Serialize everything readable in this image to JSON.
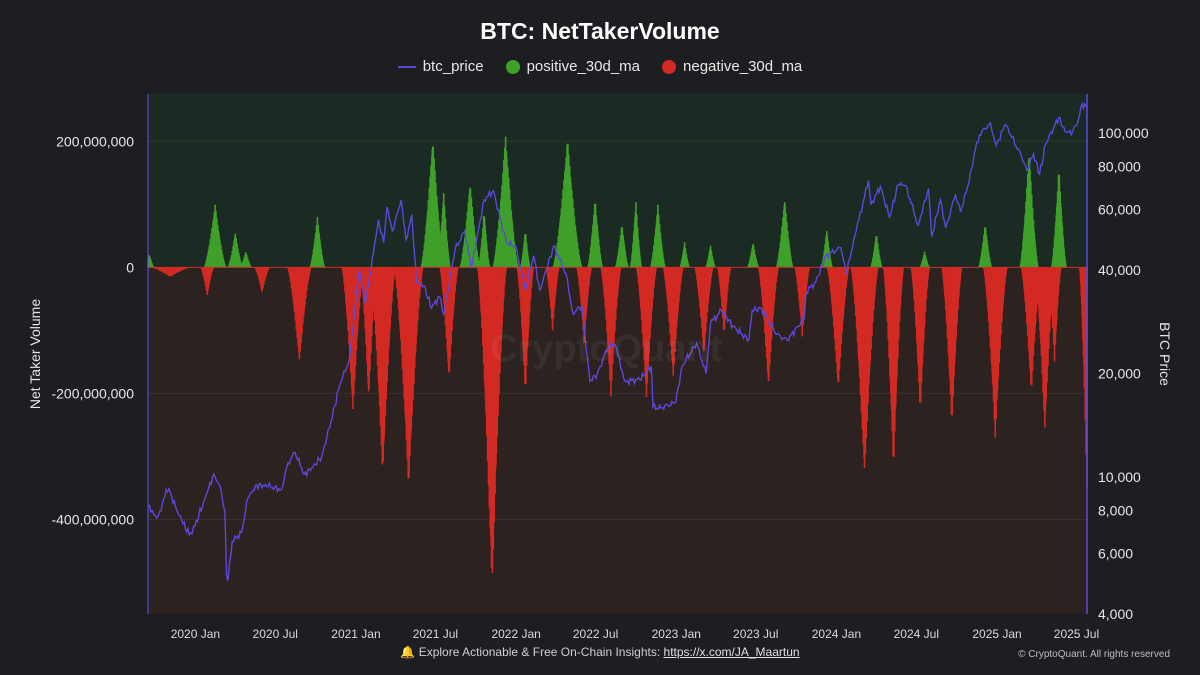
{
  "footer": {
    "bell_icon": "bell-icon",
    "text": "Explore Actionable & Free On-Chain Insights:",
    "link": "https://x.com/JA_Maartun",
    "copyright": "© CryptoQuant. All rights reserved"
  },
  "watermark": "CryptoQuant",
  "chart_data": {
    "type": "bar",
    "title": "BTC: NetTakerVolume",
    "ylabel": "Net Taker Volume",
    "y2label": "BTC Price",
    "legend_position": "top-center",
    "colors": {
      "btc_price": "#5c48d8",
      "positive": "#3fa12a",
      "negative": "#d32a23",
      "positive_bg": "#1b2a22",
      "negative_bg": "#2c2220"
    },
    "x_tick_labels": [
      "2020 Jan",
      "2020 Jul",
      "2021 Jan",
      "2021 Jul",
      "2022 Jan",
      "2022 Jul",
      "2023 Jan",
      "2023 Jul",
      "2024 Jan",
      "2024 Jul",
      "2025 Jan",
      "2025 Jul"
    ],
    "xlim": [
      "2019-09-15",
      "2025-07-25"
    ],
    "y_ticks": [
      200000000,
      0,
      -200000000,
      -400000000
    ],
    "y_tick_labels": [
      "200,000,000",
      "0",
      "-200,000,000",
      "-400,000,000"
    ],
    "ylim": [
      -550000000,
      275000000
    ],
    "y2_scale": "log",
    "y2_ticks": [
      100000,
      80000,
      60000,
      40000,
      20000,
      10000,
      8000,
      6000,
      4000
    ],
    "y2_tick_labels": [
      "100,000",
      "80,000",
      "60,000",
      "40,000",
      "20,000",
      "10,000",
      "8,000",
      "6,000",
      "4,000"
    ],
    "y2lim": [
      4000,
      130000
    ],
    "series": [
      {
        "name": "btc_price",
        "type": "line",
        "points": [
          [
            "2019-09-15",
            8200
          ],
          [
            "2019-09-25",
            8000
          ],
          [
            "2019-10-05",
            7600
          ],
          [
            "2019-10-15",
            8000
          ],
          [
            "2019-10-26",
            9200
          ],
          [
            "2019-11-05",
            9000
          ],
          [
            "2019-11-20",
            8000
          ],
          [
            "2019-12-01",
            7500
          ],
          [
            "2019-12-18",
            6800
          ],
          [
            "2019-12-31",
            7200
          ],
          [
            "2020-01-20",
            8500
          ],
          [
            "2020-02-12",
            10200
          ],
          [
            "2020-02-25",
            9500
          ],
          [
            "2020-03-08",
            8000
          ],
          [
            "2020-03-12",
            5200
          ],
          [
            "2020-03-15",
            5000
          ],
          [
            "2020-03-25",
            6500
          ],
          [
            "2020-04-15",
            6900
          ],
          [
            "2020-04-30",
            8700
          ],
          [
            "2020-05-20",
            9500
          ],
          [
            "2020-06-15",
            9400
          ],
          [
            "2020-07-15",
            9200
          ],
          [
            "2020-07-30",
            11000
          ],
          [
            "2020-08-15",
            11800
          ],
          [
            "2020-09-05",
            10200
          ],
          [
            "2020-09-25",
            10700
          ],
          [
            "2020-10-15",
            11500
          ],
          [
            "2020-11-05",
            14500
          ],
          [
            "2020-11-25",
            18500
          ],
          [
            "2020-12-17",
            22000
          ],
          [
            "2021-01-08",
            40000
          ],
          [
            "2021-01-22",
            32000
          ],
          [
            "2021-02-10",
            45000
          ],
          [
            "2021-02-21",
            56000
          ],
          [
            "2021-03-05",
            48000
          ],
          [
            "2021-03-13",
            61000
          ],
          [
            "2021-03-25",
            52000
          ],
          [
            "2021-04-14",
            64000
          ],
          [
            "2021-04-25",
            49000
          ],
          [
            "2021-05-08",
            58000
          ],
          [
            "2021-05-19",
            37000
          ],
          [
            "2021-06-05",
            36000
          ],
          [
            "2021-06-22",
            31000
          ],
          [
            "2021-07-10",
            33500
          ],
          [
            "2021-07-20",
            29800
          ],
          [
            "2021-08-15",
            46000
          ],
          [
            "2021-09-06",
            52000
          ],
          [
            "2021-09-21",
            40500
          ],
          [
            "2021-10-20",
            64000
          ],
          [
            "2021-11-10",
            68000
          ],
          [
            "2021-11-25",
            57000
          ],
          [
            "2021-12-10",
            48000
          ],
          [
            "2021-12-31",
            47000
          ],
          [
            "2022-01-22",
            35000
          ],
          [
            "2022-02-10",
            44000
          ],
          [
            "2022-02-24",
            35000
          ],
          [
            "2022-03-28",
            47000
          ],
          [
            "2022-04-25",
            39000
          ],
          [
            "2022-05-10",
            30000
          ],
          [
            "2022-05-31",
            31500
          ],
          [
            "2022-06-18",
            19000
          ],
          [
            "2022-07-05",
            20000
          ],
          [
            "2022-07-30",
            24000
          ],
          [
            "2022-08-15",
            24200
          ],
          [
            "2022-09-06",
            19000
          ],
          [
            "2022-10-10",
            19200
          ],
          [
            "2022-11-05",
            21000
          ],
          [
            "2022-11-09",
            16000
          ],
          [
            "2022-11-21",
            15800
          ],
          [
            "2022-12-31",
            16500
          ],
          [
            "2023-01-14",
            21000
          ],
          [
            "2023-02-16",
            24500
          ],
          [
            "2023-03-10",
            20000
          ],
          [
            "2023-03-20",
            28000
          ],
          [
            "2023-04-14",
            30500
          ],
          [
            "2023-05-10",
            27500
          ],
          [
            "2023-06-15",
            25000
          ],
          [
            "2023-06-23",
            30500
          ],
          [
            "2023-07-14",
            31000
          ],
          [
            "2023-08-17",
            26000
          ],
          [
            "2023-09-11",
            25000
          ],
          [
            "2023-10-20",
            29000
          ],
          [
            "2023-10-24",
            34500
          ],
          [
            "2023-11-15",
            37000
          ],
          [
            "2023-12-08",
            44000
          ],
          [
            "2024-01-11",
            46500
          ],
          [
            "2024-01-23",
            39000
          ],
          [
            "2024-02-15",
            52000
          ],
          [
            "2024-03-14",
            73000
          ],
          [
            "2024-03-20",
            62000
          ],
          [
            "2024-04-10",
            70000
          ],
          [
            "2024-05-01",
            57000
          ],
          [
            "2024-05-21",
            71000
          ],
          [
            "2024-06-07",
            70500
          ],
          [
            "2024-07-05",
            54000
          ],
          [
            "2024-07-29",
            69000
          ],
          [
            "2024-08-05",
            50000
          ],
          [
            "2024-08-25",
            64000
          ],
          [
            "2024-09-06",
            53000
          ],
          [
            "2024-09-28",
            66000
          ],
          [
            "2024-10-10",
            59000
          ],
          [
            "2024-10-29",
            72000
          ],
          [
            "2024-11-12",
            89000
          ],
          [
            "2024-11-22",
            99000
          ],
          [
            "2024-12-05",
            103000
          ],
          [
            "2024-12-17",
            107000
          ],
          [
            "2024-12-30",
            92000
          ],
          [
            "2025-01-20",
            106000
          ],
          [
            "2025-02-04",
            97000
          ],
          [
            "2025-02-25",
            86000
          ],
          [
            "2025-03-10",
            78000
          ],
          [
            "2025-03-25",
            87000
          ],
          [
            "2025-04-08",
            76000
          ],
          [
            "2025-04-22",
            93000
          ],
          [
            "2025-05-10",
            104000
          ],
          [
            "2025-05-22",
            111000
          ],
          [
            "2025-06-05",
            101000
          ],
          [
            "2025-06-22",
            100500
          ],
          [
            "2025-07-05",
            109000
          ],
          [
            "2025-07-14",
            122000
          ],
          [
            "2025-07-25",
            118000
          ]
        ]
      },
      {
        "name": "positive_30d_ma",
        "type": "bar",
        "peaks": [
          [
            "2019-09-18",
            20000000,
            10
          ],
          [
            "2020-02-15",
            100000000,
            24
          ],
          [
            "2020-04-01",
            55000000,
            16
          ],
          [
            "2020-04-25",
            25000000,
            12
          ],
          [
            "2020-10-05",
            80000000,
            16
          ],
          [
            "2021-06-25",
            205000000,
            26
          ],
          [
            "2021-07-20",
            120000000,
            14
          ],
          [
            "2021-09-18",
            135000000,
            22
          ],
          [
            "2021-10-20",
            90000000,
            12
          ],
          [
            "2021-12-08",
            210000000,
            28
          ],
          [
            "2022-01-22",
            60000000,
            10
          ],
          [
            "2022-04-28",
            205000000,
            32
          ],
          [
            "2022-06-30",
            110000000,
            16
          ],
          [
            "2022-08-30",
            70000000,
            14
          ],
          [
            "2022-10-01",
            105000000,
            12
          ],
          [
            "2022-11-20",
            100000000,
            16
          ],
          [
            "2023-01-20",
            40000000,
            10
          ],
          [
            "2023-03-20",
            35000000,
            10
          ],
          [
            "2023-06-25",
            40000000,
            12
          ],
          [
            "2023-09-05",
            110000000,
            18
          ],
          [
            "2023-12-10",
            60000000,
            12
          ],
          [
            "2024-04-01",
            55000000,
            12
          ],
          [
            "2024-07-20",
            25000000,
            10
          ],
          [
            "2024-12-05",
            70000000,
            14
          ],
          [
            "2025-03-15",
            185000000,
            20
          ],
          [
            "2025-05-22",
            160000000,
            16
          ]
        ]
      },
      {
        "name": "negative_30d_ma",
        "type": "bar",
        "troughs": [
          [
            "2019-11-05",
            -15000000,
            45
          ],
          [
            "2020-01-28",
            -45000000,
            14
          ],
          [
            "2020-06-01",
            -40000000,
            16
          ],
          [
            "2020-08-25",
            -150000000,
            26
          ],
          [
            "2020-12-25",
            -230000000,
            24
          ],
          [
            "2021-01-30",
            -210000000,
            18
          ],
          [
            "2021-03-03",
            -330000000,
            28
          ],
          [
            "2021-05-01",
            -350000000,
            32
          ],
          [
            "2021-08-01",
            -180000000,
            20
          ],
          [
            "2021-11-07",
            -510000000,
            32
          ],
          [
            "2022-01-22",
            -200000000,
            18
          ],
          [
            "2022-03-25",
            -100000000,
            14
          ],
          [
            "2022-06-05",
            -120000000,
            16
          ],
          [
            "2022-08-05",
            -205000000,
            22
          ],
          [
            "2022-10-25",
            -210000000,
            22
          ],
          [
            "2022-12-25",
            -175000000,
            22
          ],
          [
            "2023-03-05",
            -140000000,
            20
          ],
          [
            "2023-04-20",
            -110000000,
            14
          ],
          [
            "2023-07-30",
            -190000000,
            22
          ],
          [
            "2023-10-15",
            -110000000,
            16
          ],
          [
            "2024-01-05",
            -195000000,
            24
          ],
          [
            "2024-03-05",
            -330000000,
            30
          ],
          [
            "2024-05-10",
            -320000000,
            22
          ],
          [
            "2024-07-10",
            -230000000,
            20
          ],
          [
            "2024-09-20",
            -250000000,
            22
          ],
          [
            "2024-12-28",
            -270000000,
            26
          ],
          [
            "2025-03-20",
            -200000000,
            22
          ],
          [
            "2025-04-20",
            -260000000,
            22
          ],
          [
            "2025-05-12",
            -150000000,
            14
          ],
          [
            "2025-07-25",
            -355000000,
            16
          ]
        ]
      }
    ]
  }
}
